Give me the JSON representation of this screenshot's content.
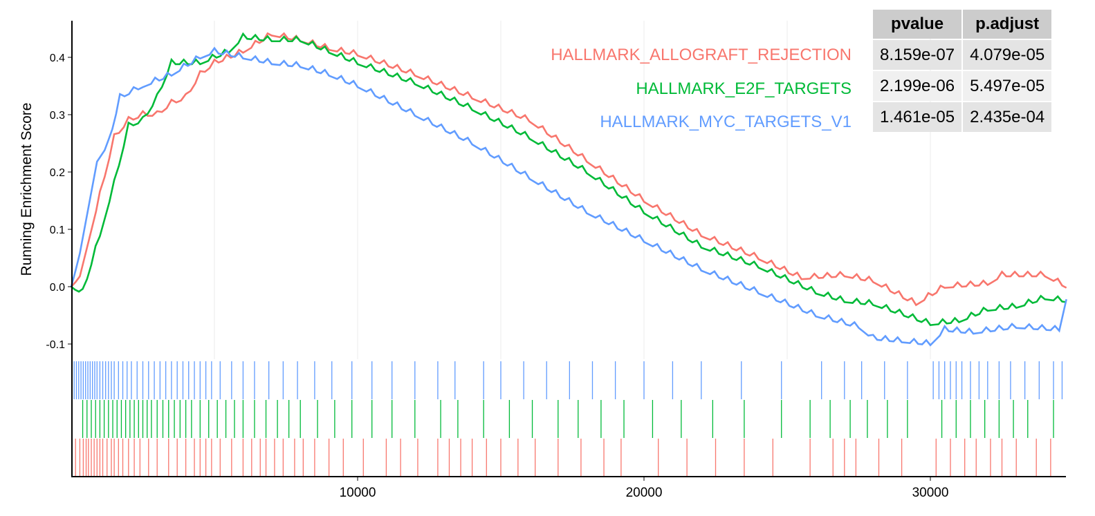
{
  "chart_data": {
    "type": "line",
    "title": "",
    "ylabel": "Running Enrichment Score",
    "xlabel": "",
    "xlim": [
      0,
      34750
    ],
    "ylim": [
      -0.135,
      0.47
    ],
    "yticks": [
      "-0.1",
      "0.0",
      "0.1",
      "0.2",
      "0.3",
      "0.4"
    ],
    "ytick_values": [
      -0.1,
      0,
      0.1,
      0.2,
      0.3,
      0.4
    ],
    "xticks": [
      "10000",
      "20000",
      "30000"
    ],
    "xtick_values": [
      10000,
      20000,
      30000
    ],
    "series": [
      {
        "name": "HALLMARK_ALLOGRAFT_REJECTION",
        "color": "#f8766d",
        "pvalue": "8.159e-07",
        "p_adjust": "4.079e-05",
        "points": [
          [
            0,
            0
          ],
          [
            300,
            0.02
          ],
          [
            600,
            0.08
          ],
          [
            1000,
            0.16
          ],
          [
            1500,
            0.26
          ],
          [
            2000,
            0.29
          ],
          [
            2500,
            0.3
          ],
          [
            3000,
            0.3
          ],
          [
            3500,
            0.32
          ],
          [
            4000,
            0.33
          ],
          [
            4500,
            0.37
          ],
          [
            5000,
            0.39
          ],
          [
            6000,
            0.41
          ],
          [
            7000,
            0.44
          ],
          [
            8000,
            0.43
          ],
          [
            9000,
            0.415
          ],
          [
            10000,
            0.405
          ],
          [
            12000,
            0.37
          ],
          [
            14000,
            0.33
          ],
          [
            16000,
            0.29
          ],
          [
            18000,
            0.22
          ],
          [
            20000,
            0.15
          ],
          [
            22000,
            0.09
          ],
          [
            24000,
            0.05
          ],
          [
            25500,
            0.015
          ],
          [
            27000,
            0.02
          ],
          [
            28000,
            0.01
          ],
          [
            29500,
            -0.03
          ],
          [
            30500,
            0.0
          ],
          [
            32000,
            0.005
          ],
          [
            32500,
            0.02
          ],
          [
            34000,
            0.02
          ],
          [
            34750,
            0.0
          ]
        ],
        "hits": [
          150,
          300,
          420,
          520,
          600,
          700,
          800,
          900,
          1000,
          1100,
          1250,
          1400,
          1500,
          1650,
          1800,
          2000,
          2200,
          2400,
          2700,
          3000,
          3400,
          3700,
          4000,
          4300,
          4500,
          4700,
          4900,
          5200,
          5600,
          6000,
          6300,
          6600,
          6800,
          7100,
          7400,
          7800,
          8100,
          8500,
          9000,
          9500,
          10200,
          11000,
          11500,
          12100,
          12800,
          13200,
          13600,
          14000,
          14500,
          15000,
          15600,
          16200,
          17000,
          17800,
          18600,
          19200,
          20500,
          21500,
          22500,
          23500,
          24500,
          25800,
          26600,
          27000,
          27400,
          28200,
          29000,
          30200,
          30700,
          31200,
          31600,
          32100,
          32500,
          33000,
          33700,
          34200
        ]
      },
      {
        "name": "HALLMARK_E2F_TARGETS",
        "color": "#00ba38",
        "pvalue": "2.199e-06",
        "p_adjust": "5.497e-05",
        "points": [
          [
            0,
            0
          ],
          [
            400,
            -0.01
          ],
          [
            1000,
            0.09
          ],
          [
            1500,
            0.18
          ],
          [
            2000,
            0.28
          ],
          [
            2500,
            0.29
          ],
          [
            3000,
            0.33
          ],
          [
            3500,
            0.39
          ],
          [
            4500,
            0.39
          ],
          [
            5500,
            0.41
          ],
          [
            6000,
            0.435
          ],
          [
            7000,
            0.43
          ],
          [
            8000,
            0.43
          ],
          [
            9000,
            0.41
          ],
          [
            10000,
            0.39
          ],
          [
            12000,
            0.355
          ],
          [
            14000,
            0.31
          ],
          [
            16000,
            0.26
          ],
          [
            18000,
            0.2
          ],
          [
            20000,
            0.13
          ],
          [
            22000,
            0.07
          ],
          [
            24000,
            0.035
          ],
          [
            26000,
            -0.01
          ],
          [
            27000,
            -0.025
          ],
          [
            28000,
            -0.03
          ],
          [
            30000,
            -0.065
          ],
          [
            31000,
            -0.06
          ],
          [
            32000,
            -0.04
          ],
          [
            33000,
            -0.035
          ],
          [
            34000,
            -0.02
          ],
          [
            34750,
            -0.025
          ]
        ],
        "hits": [
          400,
          550,
          700,
          850,
          1000,
          1150,
          1300,
          1450,
          1600,
          1750,
          1900,
          2050,
          2200,
          2350,
          2500,
          2650,
          2800,
          3000,
          3200,
          3400,
          3600,
          3800,
          4000,
          4200,
          4500,
          4800,
          5100,
          5400,
          5700,
          6000,
          6400,
          6800,
          7200,
          7600,
          8000,
          8600,
          9200,
          9800,
          10500,
          11200,
          12000,
          12900,
          13500,
          14400,
          15300,
          16100,
          17000,
          17700,
          18500,
          19300,
          20300,
          21300,
          22400,
          23500,
          24800,
          25800,
          26500,
          27200,
          27800,
          28500,
          29200,
          30400,
          30900,
          31400,
          31900,
          32400,
          32900,
          33400,
          34300
        ]
      },
      {
        "name": "HALLMARK_MYC_TARGETS_V1",
        "color": "#619cff",
        "pvalue": "1.461e-05",
        "p_adjust": "2.435e-04",
        "points": [
          [
            0,
            0
          ],
          [
            300,
            0.06
          ],
          [
            600,
            0.14
          ],
          [
            900,
            0.22
          ],
          [
            1300,
            0.25
          ],
          [
            1700,
            0.33
          ],
          [
            2500,
            0.35
          ],
          [
            3500,
            0.37
          ],
          [
            4500,
            0.4
          ],
          [
            5000,
            0.41
          ],
          [
            6000,
            0.4
          ],
          [
            7000,
            0.39
          ],
          [
            8000,
            0.385
          ],
          [
            9000,
            0.37
          ],
          [
            10000,
            0.35
          ],
          [
            12000,
            0.3
          ],
          [
            14000,
            0.25
          ],
          [
            16000,
            0.19
          ],
          [
            18000,
            0.13
          ],
          [
            20000,
            0.08
          ],
          [
            22000,
            0.03
          ],
          [
            24000,
            -0.01
          ],
          [
            26000,
            -0.05
          ],
          [
            27500,
            -0.07
          ],
          [
            28000,
            -0.09
          ],
          [
            29000,
            -0.095
          ],
          [
            30000,
            -0.1
          ],
          [
            30500,
            -0.075
          ],
          [
            31500,
            -0.08
          ],
          [
            33000,
            -0.07
          ],
          [
            34500,
            -0.075
          ],
          [
            34750,
            -0.02
          ]
        ],
        "hits": [
          100,
          180,
          260,
          340,
          420,
          500,
          580,
          660,
          740,
          820,
          900,
          1000,
          1100,
          1200,
          1300,
          1400,
          1500,
          1650,
          1800,
          1950,
          2100,
          2300,
          2500,
          2700,
          2900,
          3100,
          3300,
          3500,
          3700,
          3900,
          4100,
          4300,
          4500,
          4700,
          4900,
          5200,
          5600,
          6000,
          6400,
          6900,
          7400,
          7900,
          8500,
          9100,
          9800,
          10500,
          11200,
          12000,
          12800,
          13400,
          14400,
          15000,
          15800,
          16600,
          17400,
          18200,
          19000,
          20000,
          21000,
          22000,
          23400,
          24800,
          26200,
          27000,
          27600,
          28400,
          29200,
          30100,
          30300,
          30500,
          30700,
          30900,
          31100,
          31400,
          31700,
          32000,
          32400,
          32800,
          33300,
          33800,
          34300,
          34600
        ]
      }
    ]
  },
  "table": {
    "headers": [
      "pvalue",
      "p.adjust"
    ]
  }
}
